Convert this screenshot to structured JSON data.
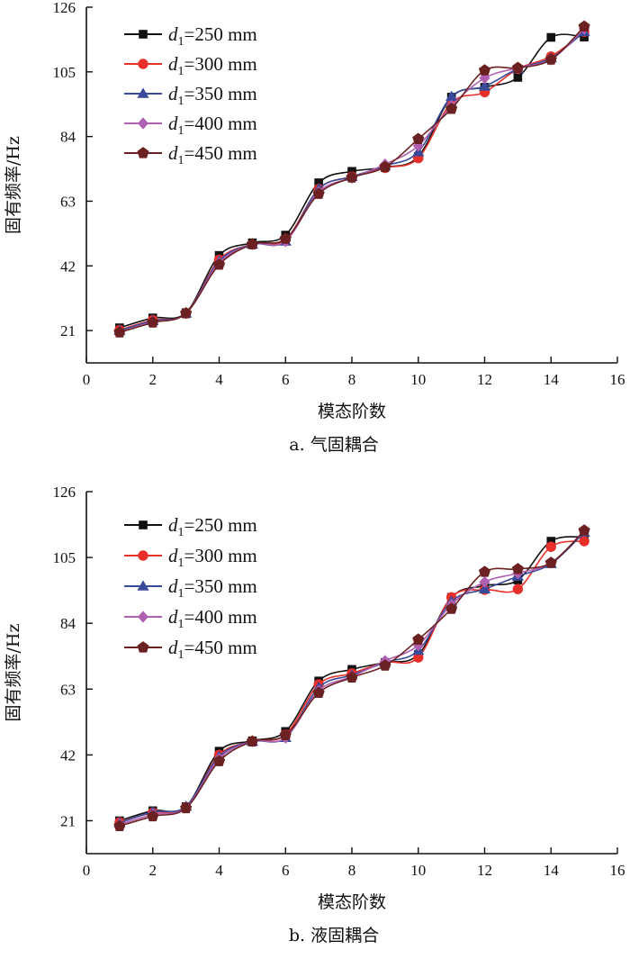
{
  "colors": {
    "d250": "#111111",
    "d300": "#e8302a",
    "d350": "#3a4a9a",
    "d400": "#b060b0",
    "d450": "#6b2121"
  },
  "chart_data": [
    {
      "type": "line",
      "title": "a. 气固耦合",
      "xlabel": "模态阶数",
      "ylabel": "固有频率/Hz",
      "xlim": [
        0,
        16
      ],
      "ylim": [
        10.5,
        126
      ],
      "xticks": [
        0,
        2,
        4,
        6,
        8,
        10,
        12,
        14,
        16
      ],
      "yticks": [
        21,
        42,
        63,
        84,
        105,
        126
      ],
      "grid": false,
      "legend_position": "top-left",
      "x": [
        1,
        2,
        3,
        4,
        5,
        6,
        7,
        8,
        9,
        10,
        11,
        12,
        13,
        14,
        15
      ],
      "series": [
        {
          "name": "d1=250 mm",
          "var": "d",
          "sub": "1",
          "rest": "=250 mm",
          "marker": "square",
          "color_key": "d250",
          "values": [
            21.9,
            25.1,
            26.8,
            45.4,
            49.5,
            52.0,
            69.0,
            72.7,
            74.0,
            77.5,
            96.8,
            100.0,
            103.2,
            116.2,
            116.3
          ]
        },
        {
          "name": "d1=300 mm",
          "var": "d",
          "sub": "1",
          "rest": "=300 mm",
          "marker": "circle",
          "color_key": "d300",
          "values": [
            21.2,
            24.4,
            26.6,
            44.0,
            49.0,
            50.5,
            67.0,
            71.0,
            73.8,
            77.0,
            95.0,
            98.4,
            106.0,
            110.0,
            118.0
          ]
        },
        {
          "name": "d1=350 mm",
          "var": "d",
          "sub": "1",
          "rest": "=350 mm",
          "marker": "triangle",
          "color_key": "d350",
          "values": [
            21.0,
            24.2,
            26.6,
            43.6,
            49.0,
            50.0,
            67.0,
            71.0,
            74.5,
            79.0,
            97.0,
            100.3,
            106.0,
            109.5,
            118.0
          ]
        },
        {
          "name": "d1=400 mm",
          "var": "d",
          "sub": "1",
          "rest": "=400 mm",
          "marker": "diamond",
          "color_key": "d400",
          "values": [
            20.6,
            23.8,
            26.6,
            43.0,
            49.0,
            50.0,
            66.0,
            70.6,
            75.0,
            81.0,
            94.0,
            103.0,
            106.3,
            109.0,
            119.0
          ]
        },
        {
          "name": "d1=450 mm",
          "var": "d",
          "sub": "1",
          "rest": "=450 mm",
          "marker": "pentagon",
          "color_key": "d450",
          "values": [
            20.4,
            23.6,
            26.6,
            42.4,
            49.0,
            50.8,
            65.4,
            70.7,
            74.1,
            83.2,
            93.0,
            105.5,
            106.3,
            109.0,
            119.7
          ]
        }
      ]
    },
    {
      "type": "line",
      "title": "b. 液固耦合",
      "xlabel": "模态阶数",
      "ylabel": "固有频率/Hz",
      "xlim": [
        0,
        16
      ],
      "ylim": [
        10.5,
        126
      ],
      "xticks": [
        0,
        2,
        4,
        6,
        8,
        10,
        12,
        14,
        16
      ],
      "yticks": [
        21,
        42,
        63,
        84,
        105,
        126
      ],
      "grid": false,
      "legend_position": "top-left",
      "x": [
        1,
        2,
        3,
        4,
        5,
        6,
        7,
        8,
        9,
        10,
        11,
        12,
        13,
        14,
        15
      ],
      "series": [
        {
          "name": "d1=250 mm",
          "var": "d",
          "sub": "1",
          "rest": "=250 mm",
          "marker": "square",
          "color_key": "d250",
          "values": [
            21.0,
            24.2,
            25.5,
            43.2,
            46.5,
            49.5,
            65.6,
            69.3,
            71.5,
            74.0,
            92.3,
            96.0,
            97.8,
            110.2,
            111.5
          ]
        },
        {
          "name": "d1=300 mm",
          "var": "d",
          "sub": "1",
          "rest": "=300 mm",
          "marker": "circle",
          "color_key": "d300",
          "values": [
            20.5,
            23.6,
            25.2,
            42.0,
            46.3,
            48.5,
            64.5,
            68.0,
            71.5,
            73.1,
            92.3,
            94.7,
            94.9,
            108.4,
            110.2
          ]
        },
        {
          "name": "d1=350 mm",
          "var": "d",
          "sub": "1",
          "rest": "=350 mm",
          "marker": "triangle",
          "color_key": "d350",
          "values": [
            20.3,
            23.8,
            25.6,
            41.5,
            46.3,
            47.5,
            63.5,
            67.5,
            71.5,
            75.3,
            91.0,
            94.9,
            99.0,
            103.0,
            113.0
          ]
        },
        {
          "name": "d1=400 mm",
          "var": "d",
          "sub": "1",
          "rest": "=400 mm",
          "marker": "diamond",
          "color_key": "d400",
          "values": [
            19.8,
            23.0,
            25.2,
            40.8,
            46.3,
            47.5,
            62.5,
            67.0,
            72.0,
            77.0,
            90.0,
            97.2,
            100.0,
            103.3,
            113.5
          ]
        },
        {
          "name": "d1=450 mm",
          "var": "d",
          "sub": "1",
          "rest": "=450 mm",
          "marker": "pentagon",
          "color_key": "d450",
          "values": [
            19.3,
            22.4,
            25.0,
            40.0,
            46.3,
            48.3,
            61.8,
            66.7,
            70.5,
            78.8,
            88.6,
            100.4,
            101.3,
            103.3,
            113.6
          ]
        }
      ]
    }
  ]
}
